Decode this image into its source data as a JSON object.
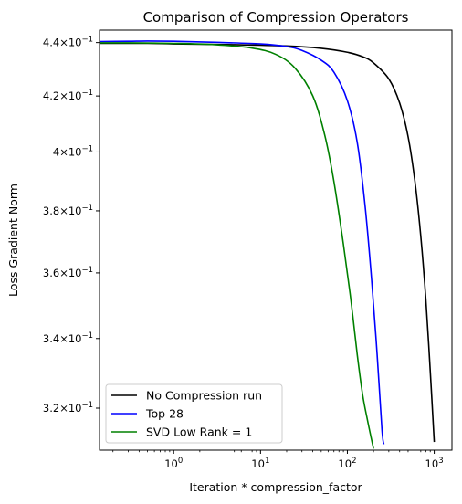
{
  "chart_data": {
    "type": "line",
    "title": "Comparison of Compression Operators",
    "xlabel": "Iteration * compression_factor",
    "ylabel": "Loss Gradient Norm",
    "xscale": "log",
    "yscale": "log",
    "xlim": [
      0.14,
      1600
    ],
    "ylim": [
      0.3085,
      0.4448
    ],
    "x_ticks": [
      {
        "value": 1,
        "base": "10",
        "exp": "0"
      },
      {
        "value": 10,
        "base": "10",
        "exp": "1"
      },
      {
        "value": 100,
        "base": "10",
        "exp": "2"
      },
      {
        "value": 1000,
        "base": "10",
        "exp": "3"
      }
    ],
    "y_ticks": [
      {
        "value": 0.32,
        "mant": "3.2",
        "base": "10",
        "exp": "−1"
      },
      {
        "value": 0.34,
        "mant": "3.4",
        "base": "10",
        "exp": "−1"
      },
      {
        "value": 0.36,
        "mant": "3.6",
        "base": "10",
        "exp": "−1"
      },
      {
        "value": 0.38,
        "mant": "3.8",
        "base": "10",
        "exp": "−1"
      },
      {
        "value": 0.4,
        "mant": "4",
        "base": "10",
        "exp": "−1"
      },
      {
        "value": 0.42,
        "mant": "4.2",
        "base": "10",
        "exp": "−1"
      },
      {
        "value": 0.44,
        "mant": "4.4",
        "base": "10",
        "exp": "−1"
      }
    ],
    "grid": false,
    "legend_position": "lower-left",
    "series": [
      {
        "name": "No Compression run",
        "color": "#000000",
        "x": [
          0.14,
          0.5,
          1,
          5,
          20,
          50,
          100,
          150,
          200,
          300,
          400,
          500,
          600,
          700,
          800,
          900,
          1000
        ],
        "y": [
          0.4397,
          0.4397,
          0.4395,
          0.4392,
          0.4387,
          0.4378,
          0.4363,
          0.4346,
          0.4323,
          0.4263,
          0.4174,
          0.4054,
          0.3898,
          0.3717,
          0.3519,
          0.3305,
          0.3107
        ]
      },
      {
        "name": "Top 28",
        "color": "#0000ff",
        "x": [
          0.14,
          0.3,
          0.5,
          1,
          3,
          10,
          20,
          30,
          50,
          70,
          100,
          130,
          160,
          190,
          220,
          250,
          263
        ],
        "y": [
          0.4404,
          0.4405,
          0.4406,
          0.4405,
          0.4401,
          0.4395,
          0.4385,
          0.437,
          0.4333,
          0.4288,
          0.4183,
          0.4033,
          0.3816,
          0.358,
          0.3354,
          0.3141,
          0.3101
        ]
      },
      {
        "name": "SVD Low Rank = 1",
        "color": "#008000",
        "x": [
          0.14,
          0.3,
          1,
          3,
          8,
          15,
          25,
          40,
          55,
          70,
          90,
          110,
          130,
          150,
          170,
          190,
          200
        ],
        "y": [
          0.4399,
          0.4399,
          0.4397,
          0.4392,
          0.4379,
          0.4355,
          0.4303,
          0.42,
          0.4058,
          0.3898,
          0.3691,
          0.3514,
          0.3352,
          0.3237,
          0.3168,
          0.3113,
          0.3089
        ]
      }
    ]
  }
}
